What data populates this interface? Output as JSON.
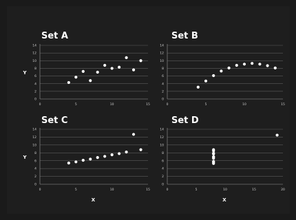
{
  "chart_data": [
    {
      "type": "scatter",
      "title": "Set A",
      "xlabel": "",
      "ylabel": "Y",
      "xlim": [
        0,
        15
      ],
      "ylim": [
        0,
        14
      ],
      "xticks": [
        "0",
        "5",
        "10",
        "15"
      ],
      "yticks": [
        "0",
        "2",
        "4",
        "6",
        "8",
        "10",
        "12",
        "14"
      ],
      "grid": "horizontal",
      "points": [
        {
          "x": 4,
          "y": 4.3
        },
        {
          "x": 5,
          "y": 5.7
        },
        {
          "x": 6,
          "y": 7.2
        },
        {
          "x": 7,
          "y": 4.8
        },
        {
          "x": 8,
          "y": 7.0
        },
        {
          "x": 9,
          "y": 8.8
        },
        {
          "x": 10,
          "y": 8.0
        },
        {
          "x": 11,
          "y": 8.3
        },
        {
          "x": 12,
          "y": 10.8
        },
        {
          "x": 13,
          "y": 7.6
        },
        {
          "x": 14,
          "y": 10.0
        }
      ]
    },
    {
      "type": "scatter",
      "title": "Set B",
      "xlabel": "",
      "ylabel": "",
      "xlim": [
        0,
        15
      ],
      "ylim": [
        0,
        14
      ],
      "xticks": [
        "0",
        "5",
        "10",
        "15"
      ],
      "yticks": [
        "0",
        "2",
        "4",
        "6",
        "8",
        "10",
        "12",
        "14"
      ],
      "grid": "horizontal",
      "points": [
        {
          "x": 4,
          "y": 3.1
        },
        {
          "x": 5,
          "y": 4.7
        },
        {
          "x": 6,
          "y": 6.1
        },
        {
          "x": 7,
          "y": 7.3
        },
        {
          "x": 8,
          "y": 8.1
        },
        {
          "x": 9,
          "y": 8.8
        },
        {
          "x": 10,
          "y": 9.1
        },
        {
          "x": 11,
          "y": 9.3
        },
        {
          "x": 12,
          "y": 9.1
        },
        {
          "x": 13,
          "y": 8.7
        },
        {
          "x": 14,
          "y": 8.1
        }
      ]
    },
    {
      "type": "scatter",
      "title": "Set C",
      "xlabel": "X",
      "ylabel": "Y",
      "xlim": [
        0,
        15
      ],
      "ylim": [
        0,
        14
      ],
      "xticks": [
        "0",
        "5",
        "10",
        "15"
      ],
      "yticks": [
        "0",
        "2",
        "4",
        "6",
        "8",
        "10",
        "12",
        "14"
      ],
      "grid": "horizontal",
      "points": [
        {
          "x": 4,
          "y": 5.4
        },
        {
          "x": 5,
          "y": 5.7
        },
        {
          "x": 6,
          "y": 6.1
        },
        {
          "x": 7,
          "y": 6.4
        },
        {
          "x": 8,
          "y": 6.8
        },
        {
          "x": 9,
          "y": 7.1
        },
        {
          "x": 10,
          "y": 7.5
        },
        {
          "x": 11,
          "y": 7.8
        },
        {
          "x": 12,
          "y": 8.2
        },
        {
          "x": 13,
          "y": 12.7
        },
        {
          "x": 14,
          "y": 8.8
        }
      ]
    },
    {
      "type": "scatter",
      "title": "Set D",
      "xlabel": "X",
      "ylabel": "",
      "xlim": [
        0,
        20
      ],
      "ylim": [
        0,
        14
      ],
      "xticks": [
        "0",
        "5",
        "10",
        "15",
        "20"
      ],
      "yticks": [
        "0",
        "2",
        "4",
        "6",
        "8",
        "10",
        "12",
        "14"
      ],
      "grid": "horizontal",
      "points": [
        {
          "x": 8,
          "y": 5.3
        },
        {
          "x": 8,
          "y": 5.8
        },
        {
          "x": 8,
          "y": 6.6
        },
        {
          "x": 8,
          "y": 7.0
        },
        {
          "x": 8,
          "y": 7.7
        },
        {
          "x": 8,
          "y": 8.5
        },
        {
          "x": 8,
          "y": 8.8
        },
        {
          "x": 8,
          "y": 6.9
        },
        {
          "x": 8,
          "y": 7.9
        },
        {
          "x": 8,
          "y": 5.6
        },
        {
          "x": 19,
          "y": 12.5
        }
      ]
    }
  ]
}
